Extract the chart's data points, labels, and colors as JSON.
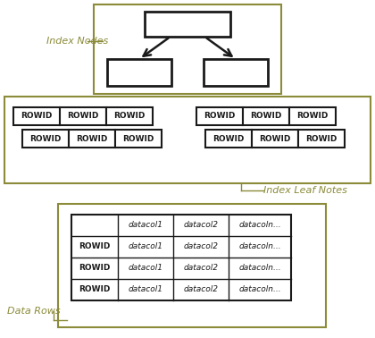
{
  "bg_color": "#ffffff",
  "olive": "#8B8B3A",
  "black": "#1a1a1a",
  "white": "#ffffff",
  "label_color": "#8B8B3A",
  "index_nodes_label": "Index Nodes",
  "index_leaf_label": "Index Leaf Notes",
  "data_rows_label": "Data Rows",
  "rowid_text": "ROWID",
  "datacol1": "datacol1",
  "datacol2": "datacol2",
  "datacoln": "datacoln...",
  "fig_width": 4.2,
  "fig_height": 3.78,
  "dpi": 100
}
